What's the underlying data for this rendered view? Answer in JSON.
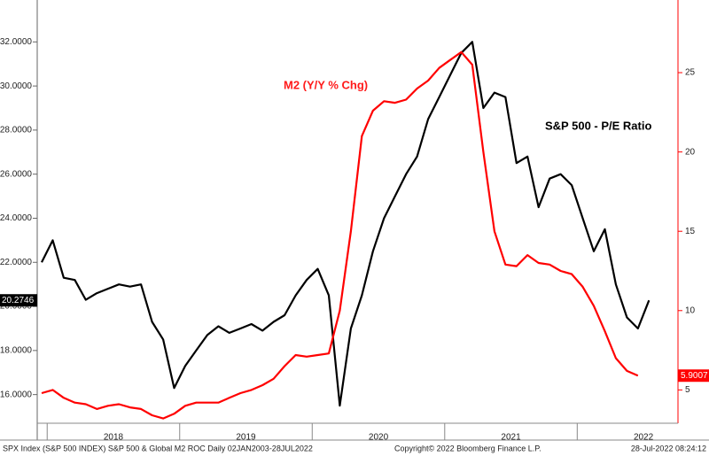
{
  "chart_data": {
    "type": "line",
    "annotations": [
      "M2 (Y/Y % Chg)",
      "S&P 500 - P/E Ratio"
    ],
    "footer": [
      "SPX Index (S&P 500 INDEX) S&P 500 & Global M2 ROC  Daily 02JAN2003-28JUL2022",
      "Copyright© 2022 Bloomberg Finance L.P.",
      "28-Jul-2022 08:24:12"
    ],
    "categories": [
      null,
      null,
      null,
      null,
      null,
      null,
      null,
      "2018",
      null,
      null,
      null,
      null,
      null,
      null,
      null,
      null,
      null,
      null,
      null,
      "2019",
      null,
      null,
      null,
      null,
      null,
      null,
      null,
      null,
      null,
      null,
      null,
      "2020",
      null,
      null,
      null,
      null,
      null,
      null,
      null,
      null,
      null,
      null,
      null,
      "2021",
      null,
      null,
      null,
      null,
      null,
      null,
      null,
      null,
      null,
      null,
      null,
      "2022"
    ],
    "series": [
      {
        "name": "S&P 500 - P/E Ratio",
        "color": "#000000",
        "axis": "y",
        "values": [
          22.0,
          23.0,
          21.3,
          21.2,
          20.3,
          20.6,
          20.8,
          21.0,
          20.9,
          21.0,
          19.3,
          18.5,
          16.3,
          17.3,
          18.0,
          18.7,
          19.1,
          18.8,
          19.0,
          19.2,
          18.9,
          19.3,
          19.6,
          20.5,
          21.2,
          21.7,
          20.5,
          15.5,
          19.0,
          20.5,
          22.5,
          24.0,
          25.0,
          26.0,
          26.8,
          28.5,
          29.5,
          30.5,
          31.5,
          32.0,
          29.0,
          29.7,
          29.5,
          26.5,
          26.8,
          24.5,
          25.8,
          26.0,
          25.5,
          24.0,
          22.5,
          23.5,
          21.0,
          19.5,
          19.0,
          20.2746
        ]
      },
      {
        "name": "M2 (Y/Y % Chg)",
        "color": "#ff0000",
        "axis": "y2",
        "values": [
          4.8,
          5.0,
          4.5,
          4.2,
          4.1,
          3.8,
          4.0,
          4.1,
          3.9,
          3.8,
          3.4,
          3.2,
          3.5,
          4.0,
          4.2,
          4.2,
          4.2,
          4.5,
          4.8,
          5.0,
          5.3,
          5.7,
          6.5,
          7.2,
          7.1,
          7.2,
          7.3,
          10.0,
          15.0,
          21.0,
          22.6,
          23.2,
          23.1,
          23.3,
          24.0,
          24.5,
          25.3,
          25.8,
          26.3,
          25.5,
          20.0,
          15.0,
          12.9,
          12.8,
          13.5,
          13.0,
          12.9,
          12.5,
          12.3,
          11.5,
          10.3,
          8.7,
          7.0,
          6.2,
          5.9007,
          null
        ]
      }
    ],
    "ylim": [
      14.7,
      33.7
    ],
    "yticks": [
      {
        "value": 16,
        "label": "16.0000"
      },
      {
        "value": 18,
        "label": "18.0000"
      },
      {
        "value": 20,
        "label": "20.0000"
      },
      {
        "value": 22,
        "label": "22.0000"
      },
      {
        "value": 24,
        "label": "24.0000"
      },
      {
        "value": 26,
        "label": "26.0000"
      },
      {
        "value": 28,
        "label": "28.0000"
      },
      {
        "value": 30,
        "label": "30.0000"
      },
      {
        "value": 32,
        "label": "32.0000"
      }
    ],
    "y2lim": [
      2.9,
      29.3
    ],
    "y2ticks": [
      5,
      10,
      15,
      20,
      25
    ],
    "grid": false
  }
}
